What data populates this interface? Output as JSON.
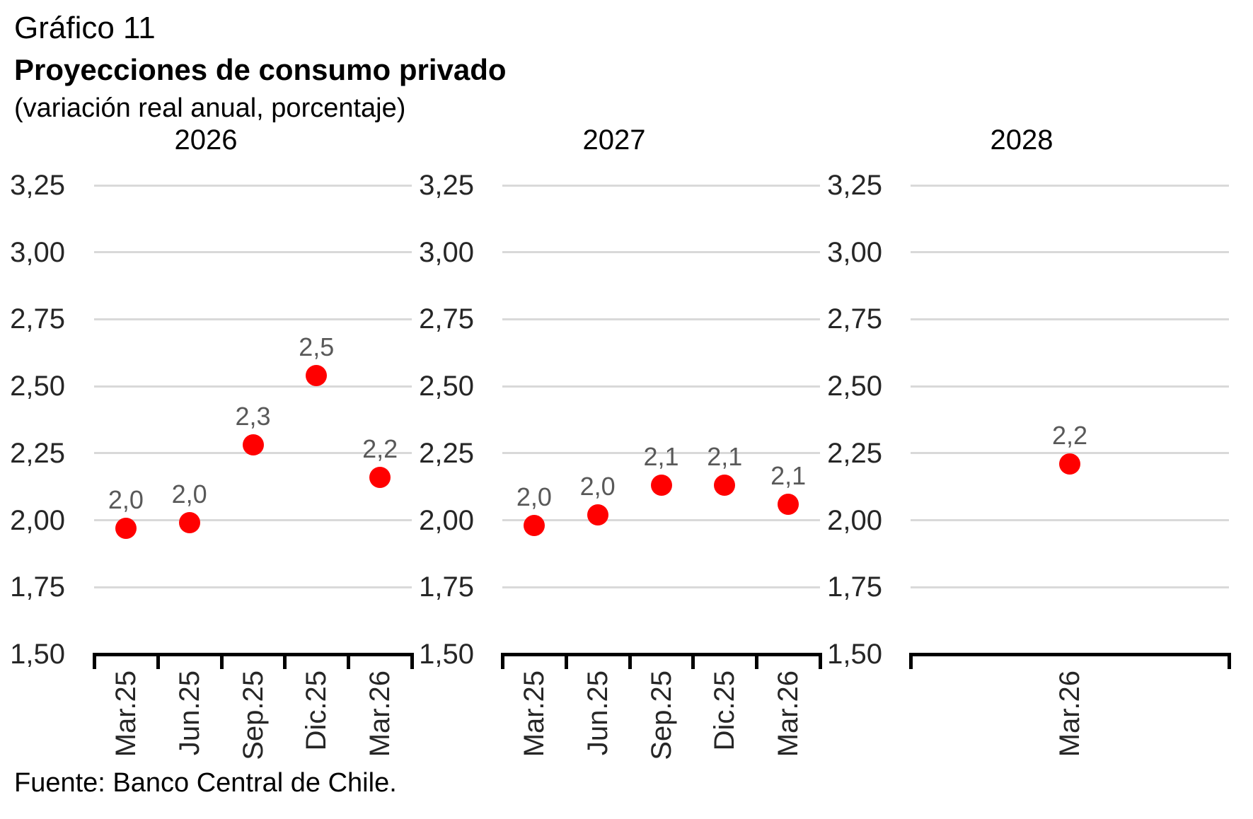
{
  "header": {
    "chart_number": "Gráfico 11",
    "title": "Proyecciones de consumo privado",
    "unit_note": "(variación real anual, porcentaje)"
  },
  "footer": {
    "source": "Fuente: Banco Central de Chile."
  },
  "colors": {
    "marker": "#ff0000",
    "data_label": "#595959",
    "gridline": "#d9d9d9",
    "axis_line": "#000000",
    "tick_label": "#262626",
    "panel_title": "#000000"
  },
  "chart_data": [
    {
      "type": "scatter",
      "title": "2026",
      "categories": [
        "Mar.25",
        "Jun.25",
        "Sep.25",
        "Dic.25",
        "Mar.26"
      ],
      "values": [
        1.97,
        1.99,
        2.28,
        2.54,
        2.16
      ],
      "data_labels": [
        "2,0",
        "2,0",
        "2,3",
        "2,5",
        "2,2"
      ],
      "ylim": [
        1.5,
        3.25
      ],
      "yticks": [
        1.5,
        1.75,
        2.0,
        2.25,
        2.5,
        2.75,
        3.0,
        3.25
      ],
      "ytick_labels": [
        "1,50",
        "1,75",
        "2,00",
        "2,25",
        "2,50",
        "2,75",
        "3,00",
        "3,25"
      ],
      "grid": true,
      "legend": "none"
    },
    {
      "type": "scatter",
      "title": "2027",
      "categories": [
        "Mar.25",
        "Jun.25",
        "Sep.25",
        "Dic.25",
        "Mar.26"
      ],
      "values": [
        1.98,
        2.02,
        2.13,
        2.13,
        2.06
      ],
      "data_labels": [
        "2,0",
        "2,0",
        "2,1",
        "2,1",
        "2,1"
      ],
      "ylim": [
        1.5,
        3.25
      ],
      "yticks": [
        1.5,
        1.75,
        2.0,
        2.25,
        2.5,
        2.75,
        3.0,
        3.25
      ],
      "ytick_labels": [
        "1,50",
        "1,75",
        "2,00",
        "2,25",
        "2,50",
        "2,75",
        "3,00",
        "3,25"
      ],
      "grid": true,
      "legend": "none"
    },
    {
      "type": "scatter",
      "title": "2028",
      "categories": [
        "Mar.26"
      ],
      "values": [
        2.21
      ],
      "data_labels": [
        "2,2"
      ],
      "ylim": [
        1.5,
        3.25
      ],
      "yticks": [
        1.5,
        1.75,
        2.0,
        2.25,
        2.5,
        2.75,
        3.0,
        3.25
      ],
      "ytick_labels": [
        "1,50",
        "1,75",
        "2,00",
        "2,25",
        "2,50",
        "2,75",
        "3,00",
        "3,25"
      ],
      "grid": true,
      "legend": "none"
    }
  ]
}
